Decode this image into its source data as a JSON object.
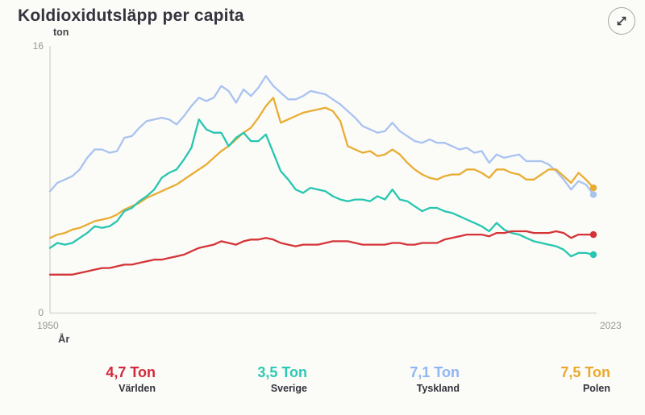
{
  "header": {
    "title": "Koldioxidutsläpp per capita"
  },
  "chart": {
    "unit_label": "ton",
    "y_max_label": "16",
    "y_min_label": "0",
    "x_min_label": "1950",
    "x_max_label": "2023",
    "x_axis_title": "År",
    "axis_color": "#dbdbd4",
    "tick_text_color": "#97978f"
  },
  "legend": [
    {
      "value": "4,7 Ton",
      "label": "Världen",
      "color": "#d2293c"
    },
    {
      "value": "3,5 Ton",
      "label": "Sverige",
      "color": "#2bc9b4"
    },
    {
      "value": "7,1 Ton",
      "label": "Tyskland",
      "color": "#8fb5f4"
    },
    {
      "value": "7,5 Ton",
      "label": "Polen",
      "color": "#e9a92e"
    }
  ],
  "chart_data": {
    "type": "line",
    "title": "Koldioxidutsläpp per capita",
    "xlabel": "År",
    "ylabel": "ton",
    "ylim": [
      0,
      16
    ],
    "xlim": [
      1950,
      2023
    ],
    "grid": false,
    "legend_position": "bottom",
    "x": [
      1950,
      1951,
      1952,
      1953,
      1954,
      1955,
      1956,
      1957,
      1958,
      1959,
      1960,
      1961,
      1962,
      1963,
      1964,
      1965,
      1966,
      1967,
      1968,
      1969,
      1970,
      1971,
      1972,
      1973,
      1974,
      1975,
      1976,
      1977,
      1978,
      1979,
      1980,
      1981,
      1982,
      1983,
      1984,
      1985,
      1986,
      1987,
      1988,
      1989,
      1990,
      1991,
      1992,
      1993,
      1994,
      1995,
      1996,
      1997,
      1998,
      1999,
      2000,
      2001,
      2002,
      2003,
      2004,
      2005,
      2006,
      2007,
      2008,
      2009,
      2010,
      2011,
      2012,
      2013,
      2014,
      2015,
      2016,
      2017,
      2018,
      2019,
      2020,
      2021,
      2022,
      2023
    ],
    "series": [
      {
        "name": "Tyskland",
        "color": "#a9c3f0",
        "end_value_label": "7,1 Ton",
        "values": [
          7.3,
          7.8,
          8.0,
          8.2,
          8.6,
          9.3,
          9.8,
          9.8,
          9.6,
          9.7,
          10.5,
          10.6,
          11.1,
          11.5,
          11.6,
          11.7,
          11.6,
          11.3,
          11.8,
          12.4,
          12.9,
          12.7,
          12.9,
          13.6,
          13.3,
          12.6,
          13.4,
          13.0,
          13.5,
          14.2,
          13.6,
          13.2,
          12.8,
          12.8,
          13.0,
          13.3,
          13.2,
          13.1,
          12.8,
          12.5,
          12.1,
          11.7,
          11.2,
          11.0,
          10.8,
          10.9,
          11.4,
          10.9,
          10.6,
          10.3,
          10.2,
          10.4,
          10.2,
          10.2,
          10.0,
          9.8,
          9.9,
          9.6,
          9.7,
          9.0,
          9.5,
          9.3,
          9.4,
          9.5,
          9.1,
          9.1,
          9.1,
          8.9,
          8.5,
          8.0,
          7.4,
          7.9,
          7.7,
          7.1
        ]
      },
      {
        "name": "Polen",
        "color": "#e8ad33",
        "end_value_label": "7,5 Ton",
        "values": [
          4.5,
          4.7,
          4.8,
          5.0,
          5.1,
          5.3,
          5.5,
          5.6,
          5.7,
          5.9,
          6.2,
          6.4,
          6.6,
          6.9,
          7.1,
          7.3,
          7.5,
          7.7,
          8.0,
          8.3,
          8.6,
          8.9,
          9.3,
          9.7,
          10.0,
          10.4,
          10.8,
          11.1,
          11.7,
          12.4,
          12.9,
          11.4,
          11.6,
          11.8,
          12.0,
          12.1,
          12.2,
          12.3,
          12.1,
          11.5,
          10.0,
          9.8,
          9.6,
          9.7,
          9.4,
          9.5,
          9.8,
          9.5,
          9.0,
          8.6,
          8.3,
          8.1,
          8.0,
          8.2,
          8.3,
          8.3,
          8.6,
          8.6,
          8.4,
          8.1,
          8.6,
          8.6,
          8.4,
          8.3,
          8.0,
          8.0,
          8.3,
          8.6,
          8.6,
          8.2,
          7.8,
          8.4,
          8.0,
          7.5
        ]
      },
      {
        "name": "Sverige",
        "color": "#27c6b0",
        "end_value_label": "3,5 Ton",
        "values": [
          3.9,
          4.2,
          4.1,
          4.2,
          4.5,
          4.8,
          5.2,
          5.1,
          5.2,
          5.5,
          6.1,
          6.3,
          6.7,
          7.0,
          7.4,
          8.1,
          8.4,
          8.6,
          9.2,
          9.9,
          11.6,
          11.0,
          10.8,
          10.8,
          10.0,
          10.5,
          10.8,
          10.3,
          10.3,
          10.7,
          9.6,
          8.5,
          8.0,
          7.4,
          7.2,
          7.5,
          7.4,
          7.3,
          7.0,
          6.8,
          6.7,
          6.8,
          6.8,
          6.7,
          7.0,
          6.8,
          7.4,
          6.8,
          6.7,
          6.4,
          6.1,
          6.3,
          6.3,
          6.1,
          6.0,
          5.8,
          5.6,
          5.4,
          5.2,
          4.9,
          5.4,
          5.0,
          4.8,
          4.7,
          4.5,
          4.3,
          4.2,
          4.1,
          4.0,
          3.8,
          3.4,
          3.6,
          3.6,
          3.5
        ]
      },
      {
        "name": "Världen",
        "color": "#d43438",
        "end_value_label": "4,7 Ton",
        "values": [
          2.3,
          2.3,
          2.3,
          2.3,
          2.4,
          2.5,
          2.6,
          2.7,
          2.7,
          2.8,
          2.9,
          2.9,
          3.0,
          3.1,
          3.2,
          3.2,
          3.3,
          3.4,
          3.5,
          3.7,
          3.9,
          4.0,
          4.1,
          4.3,
          4.2,
          4.1,
          4.3,
          4.4,
          4.4,
          4.5,
          4.4,
          4.2,
          4.1,
          4.0,
          4.1,
          4.1,
          4.1,
          4.2,
          4.3,
          4.3,
          4.3,
          4.2,
          4.1,
          4.1,
          4.1,
          4.1,
          4.2,
          4.2,
          4.1,
          4.1,
          4.2,
          4.2,
          4.2,
          4.4,
          4.5,
          4.6,
          4.7,
          4.7,
          4.7,
          4.6,
          4.8,
          4.8,
          4.9,
          4.9,
          4.9,
          4.8,
          4.8,
          4.8,
          4.9,
          4.8,
          4.5,
          4.7,
          4.7,
          4.7
        ]
      }
    ]
  }
}
